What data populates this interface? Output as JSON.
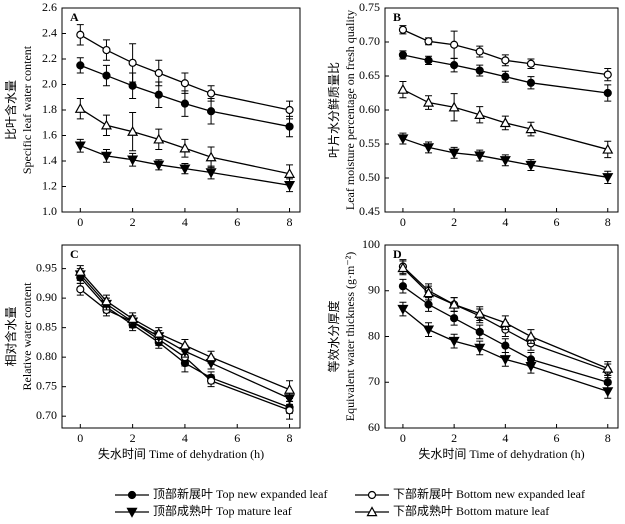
{
  "chart_data": [
    {
      "type": "line",
      "label": "A",
      "ylabel": [
        "比叶含水量",
        "Specific leaf water content"
      ],
      "x": [
        0,
        1,
        2,
        3,
        4,
        5,
        8
      ],
      "xlim": [
        -0.7,
        8.4
      ],
      "xticks": [
        0,
        2,
        4,
        6,
        8
      ],
      "ylim": [
        1.0,
        2.6
      ],
      "yticks": [
        {
          "value": 1.0,
          "label": "1.0"
        },
        1.2,
        1.4,
        1.6,
        1.8,
        {
          "value": 2.0,
          "label": "2.0"
        },
        2.2,
        2.4,
        2.6
      ],
      "series": [
        {
          "name": "顶部新展叶 Top new expanded leaf",
          "marker": "circle-filled",
          "values": [
            2.15,
            2.07,
            1.99,
            1.92,
            1.85,
            1.79,
            1.67
          ],
          "errors": [
            0.06,
            0.08,
            0.1,
            0.1,
            0.1,
            0.1,
            0.08
          ]
        },
        {
          "name": "下部新展叶 Bottom new expanded leaf",
          "marker": "circle-open",
          "values": [
            2.39,
            2.27,
            2.17,
            2.09,
            2.01,
            1.93,
            1.8
          ],
          "errors": [
            0.08,
            0.08,
            0.15,
            0.1,
            0.08,
            0.06,
            0.07
          ]
        },
        {
          "name": "顶部成熟叶 Top mature leaf",
          "marker": "tri-down-filled",
          "values": [
            1.52,
            1.44,
            1.41,
            1.37,
            1.34,
            1.31,
            1.21
          ],
          "errors": [
            0.05,
            0.05,
            0.05,
            0.04,
            0.04,
            0.05,
            0.05
          ]
        },
        {
          "name": "下部成熟叶 Bottom mature leaf",
          "marker": "tri-up-open",
          "values": [
            1.81,
            1.68,
            1.63,
            1.57,
            1.5,
            1.43,
            1.3
          ],
          "errors": [
            0.08,
            0.08,
            0.15,
            0.08,
            0.07,
            0.08,
            0.07
          ]
        }
      ]
    },
    {
      "type": "line",
      "label": "B",
      "ylabel": [
        "叶片水分鲜质量比",
        "Leaf moisture percentage on fresh quality"
      ],
      "x": [
        0,
        1,
        2,
        3,
        4,
        5,
        8
      ],
      "xlim": [
        -0.7,
        8.4
      ],
      "xticks": [
        0,
        2,
        4,
        6,
        8
      ],
      "ylim": [
        0.45,
        0.75
      ],
      "yticks": [
        0.45,
        {
          "value": 0.5,
          "label": "0.50"
        },
        0.55,
        {
          "value": 0.6,
          "label": "0.60"
        },
        0.65,
        {
          "value": 0.7,
          "label": "0.70"
        },
        0.75
      ],
      "series": [
        {
          "marker": "circle-filled",
          "values": [
            0.681,
            0.673,
            0.666,
            0.658,
            0.649,
            0.64,
            0.625
          ],
          "errors": [
            0.006,
            0.006,
            0.01,
            0.008,
            0.008,
            0.009,
            0.012
          ]
        },
        {
          "marker": "circle-open",
          "values": [
            0.718,
            0.701,
            0.696,
            0.686,
            0.673,
            0.668,
            0.652
          ],
          "errors": [
            0.006,
            0.005,
            0.02,
            0.008,
            0.008,
            0.007,
            0.009
          ]
        },
        {
          "marker": "tri-down-filled",
          "values": [
            0.558,
            0.545,
            0.537,
            0.533,
            0.526,
            0.519,
            0.501
          ],
          "errors": [
            0.008,
            0.008,
            0.008,
            0.008,
            0.008,
            0.008,
            0.009
          ]
        },
        {
          "marker": "tri-up-open",
          "values": [
            0.63,
            0.611,
            0.604,
            0.593,
            0.581,
            0.572,
            0.542
          ],
          "errors": [
            0.012,
            0.01,
            0.02,
            0.012,
            0.01,
            0.01,
            0.012
          ]
        }
      ]
    },
    {
      "type": "line",
      "label": "C",
      "ylabel": [
        "相对含水量",
        "Relative water content"
      ],
      "xlabel": "失水时间 Time of dehydration (h)",
      "x": [
        0,
        1,
        2,
        3,
        4,
        5,
        8
      ],
      "xlim": [
        -0.7,
        8.4
      ],
      "xticks": [
        0,
        2,
        4,
        6,
        8
      ],
      "ylim": [
        0.68,
        0.99
      ],
      "yticks": [
        {
          "value": 0.7,
          "label": "0.70"
        },
        0.75,
        {
          "value": 0.8,
          "label": "0.80"
        },
        0.85,
        {
          "value": 0.9,
          "label": "0.90"
        },
        0.95
      ],
      "series": [
        {
          "marker": "circle-filled",
          "values": [
            0.935,
            0.885,
            0.855,
            0.825,
            0.79,
            0.765,
            0.715
          ],
          "errors": [
            0.01,
            0.01,
            0.01,
            0.01,
            0.015,
            0.01,
            0.01
          ]
        },
        {
          "marker": "circle-open",
          "values": [
            0.915,
            0.88,
            0.86,
            0.83,
            0.8,
            0.76,
            0.71
          ],
          "errors": [
            0.01,
            0.01,
            0.01,
            0.01,
            0.015,
            0.01,
            0.015
          ]
        },
        {
          "marker": "tri-down-filled",
          "values": [
            0.94,
            0.89,
            0.86,
            0.835,
            0.81,
            0.79,
            0.73
          ],
          "errors": [
            0.01,
            0.01,
            0.01,
            0.01,
            0.01,
            0.01,
            0.01
          ]
        },
        {
          "marker": "tri-up-open",
          "values": [
            0.945,
            0.895,
            0.865,
            0.84,
            0.82,
            0.8,
            0.745
          ],
          "errors": [
            0.01,
            0.01,
            0.01,
            0.01,
            0.01,
            0.01,
            0.015
          ]
        }
      ]
    },
    {
      "type": "line",
      "label": "D",
      "ylabel": [
        "等效水分厚度",
        "Equivalent water thickness (g·m⁻²)"
      ],
      "xlabel": "失水时间 Time of dehydration (h)",
      "x": [
        0,
        1,
        2,
        3,
        4,
        5,
        8
      ],
      "xlim": [
        -0.7,
        8.4
      ],
      "xticks": [
        0,
        2,
        4,
        6,
        8
      ],
      "ylim": [
        60,
        100
      ],
      "yticks": [
        60,
        70,
        80,
        90,
        100
      ],
      "series": [
        {
          "marker": "circle-filled",
          "values": [
            91,
            87,
            84,
            81,
            78,
            75,
            70
          ],
          "errors": [
            1.5,
            1.5,
            1.5,
            1.5,
            1.5,
            1.5,
            1.5
          ]
        },
        {
          "marker": "circle-open",
          "values": [
            95.3,
            90,
            87,
            84.5,
            81.5,
            78.5,
            72.5
          ],
          "errors": [
            1.5,
            1.5,
            1.5,
            1.5,
            1.5,
            1.5,
            1.5
          ]
        },
        {
          "marker": "tri-down-filled",
          "values": [
            86,
            81.5,
            79,
            77.5,
            75,
            73.5,
            68
          ],
          "errors": [
            1.5,
            1.5,
            1.5,
            1.5,
            1.5,
            1.5,
            1.5
          ]
        },
        {
          "marker": "tri-up-open",
          "values": [
            95,
            89.5,
            87,
            85,
            83,
            80,
            73
          ],
          "errors": [
            1.5,
            1.5,
            1.5,
            1.5,
            1.5,
            1.5,
            1.5
          ]
        }
      ]
    }
  ]
}
